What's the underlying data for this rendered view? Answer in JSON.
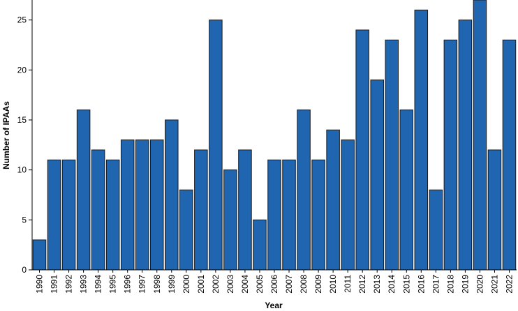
{
  "chart_data": {
    "type": "bar",
    "title": "",
    "xlabel": "Year",
    "ylabel": "Number of IPAAs",
    "ylim": [
      0,
      27
    ],
    "yticks": [
      0,
      5,
      10,
      15,
      20,
      25
    ],
    "grid": false,
    "bar_color": "#1f65b0",
    "bar_edge_color": "#1a1a1a",
    "categories": [
      "1990",
      "1991",
      "1992",
      "1993",
      "1994",
      "1995",
      "1996",
      "1997",
      "1998",
      "1999",
      "2000",
      "2001",
      "2002",
      "2003",
      "2004",
      "2005",
      "2006",
      "2007",
      "2008",
      "2009",
      "2010",
      "2011",
      "2012",
      "2013",
      "2014",
      "2015",
      "2016",
      "2017",
      "2018",
      "2019",
      "2020",
      "2021",
      "2022"
    ],
    "values": [
      3,
      11,
      11,
      16,
      12,
      11,
      13,
      13,
      13,
      15,
      8,
      12,
      25,
      10,
      12,
      5,
      11,
      11,
      16,
      11,
      14,
      13,
      24,
      19,
      23,
      16,
      26,
      8,
      23,
      25,
      27,
      12,
      23
    ]
  }
}
